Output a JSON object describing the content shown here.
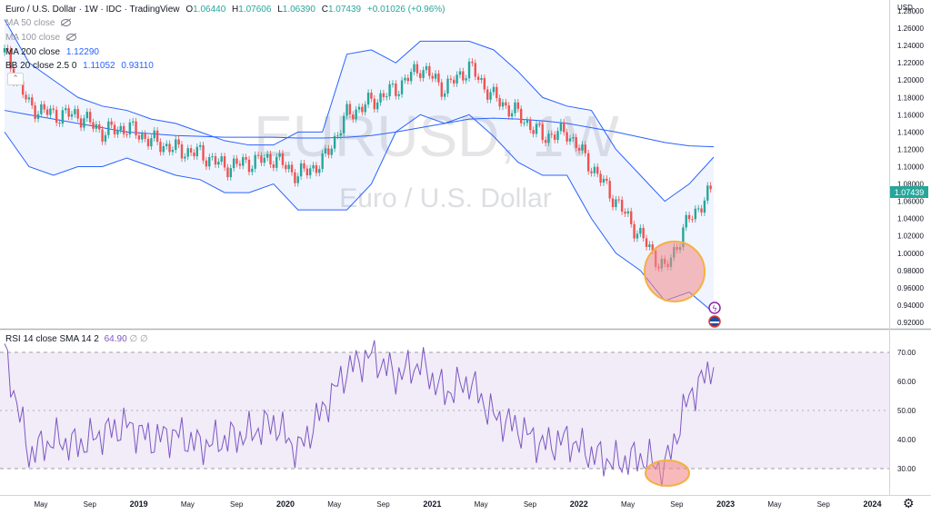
{
  "header": {
    "symbol_title": "Euro / U.S. Dollar · 1W · IDC · TradingView",
    "open_label": "O",
    "open": "1.06440",
    "high_label": "H",
    "high": "1.07606",
    "low_label": "L",
    "low": "1.06390",
    "close_label": "C",
    "close": "1.07439",
    "change": "+0.01026 (+0.96%)"
  },
  "indicators": {
    "ma50": "MA 50 close",
    "ma100": "MA 100 close",
    "ma200": "MA 200 close",
    "ma200_value": "1.12290",
    "bb": "BB 20 close 2.5 0",
    "bb_upper": "1.11052",
    "bb_lower": "0.93110",
    "collapse_icon": "chevron-up-icon",
    "rsi": "RSI 14 close SMA 14 2",
    "rsi_value": "64.90",
    "rsi_na1": "∅",
    "rsi_na2": "∅"
  },
  "watermark": {
    "symbol": "EURUSD, 1W",
    "name": "Euro / U.S. Dollar"
  },
  "colors": {
    "up": "#26a69a",
    "down": "#ef5350",
    "bb": "#2962ff",
    "ma200": "#2962ff",
    "rsi_line": "#7e57c2",
    "rsi_band": "#f1ecf8",
    "highlight": "#f28b8b",
    "highlight_border": "#f5b041",
    "last_price": "#26a69a"
  },
  "price_axis": {
    "currency": "USD",
    "ticks": [
      "1.28000",
      "1.26000",
      "1.24000",
      "1.22000",
      "1.20000",
      "1.18000",
      "1.16000",
      "1.14000",
      "1.12000",
      "1.10000",
      "1.08000",
      "1.06000",
      "1.04000",
      "1.02000",
      "1.00000",
      "0.98000",
      "0.96000",
      "0.94000",
      "0.92000"
    ],
    "last_price": "1.07439"
  },
  "rsi_axis": {
    "ticks": [
      "70.00",
      "60.00",
      "50.00",
      "40.00",
      "30.00"
    ]
  },
  "time_axis": {
    "labels": [
      "May",
      "Sep",
      "2019",
      "May",
      "Sep",
      "2020",
      "May",
      "Sep",
      "2021",
      "May",
      "Sep",
      "2022",
      "May",
      "Sep",
      "2023",
      "May",
      "Sep",
      "2024"
    ]
  },
  "settings_icon": "gear-icon",
  "chart_data": [
    {
      "type": "line",
      "title": "EURUSD, 1W",
      "ylabel": "USD",
      "ylim": [
        0.91,
        1.29
      ],
      "x": [
        "2018-03",
        "2018-05",
        "2018-07",
        "2018-09",
        "2018-11",
        "2019-01",
        "2019-03",
        "2019-05",
        "2019-07",
        "2019-09",
        "2019-11",
        "2020-01",
        "2020-03",
        "2020-05",
        "2020-07",
        "2020-09",
        "2020-11",
        "2021-01",
        "2021-03",
        "2021-05",
        "2021-07",
        "2021-09",
        "2021-11",
        "2022-01",
        "2022-03",
        "2022-05",
        "2022-07",
        "2022-09",
        "2022-11",
        "2023-01"
      ],
      "series": [
        {
          "name": "EURUSD",
          "values": [
            1.232,
            1.17,
            1.16,
            1.16,
            1.14,
            1.145,
            1.13,
            1.12,
            1.115,
            1.1,
            1.105,
            1.11,
            1.09,
            1.105,
            1.16,
            1.175,
            1.19,
            1.215,
            1.19,
            1.215,
            1.18,
            1.16,
            1.135,
            1.14,
            1.1,
            1.06,
            1.02,
            0.98,
            1.04,
            1.074
          ]
        },
        {
          "name": "MA 200 close",
          "values": [
            1.165,
            1.16,
            1.155,
            1.15,
            1.145,
            1.14,
            1.138,
            1.136,
            1.135,
            1.134,
            1.134,
            1.134,
            1.133,
            1.133,
            1.134,
            1.136,
            1.14,
            1.145,
            1.15,
            1.155,
            1.156,
            1.155,
            1.153,
            1.15,
            1.145,
            1.14,
            1.134,
            1.128,
            1.124,
            1.123
          ]
        },
        {
          "name": "BB upper",
          "values": [
            1.27,
            1.22,
            1.2,
            1.18,
            1.17,
            1.165,
            1.155,
            1.15,
            1.14,
            1.13,
            1.125,
            1.125,
            1.14,
            1.14,
            1.23,
            1.235,
            1.22,
            1.245,
            1.245,
            1.245,
            1.235,
            1.21,
            1.18,
            1.17,
            1.165,
            1.12,
            1.09,
            1.06,
            1.08,
            1.111
          ]
        },
        {
          "name": "BB lower",
          "values": [
            1.14,
            1.1,
            1.09,
            1.1,
            1.1,
            1.11,
            1.1,
            1.09,
            1.085,
            1.07,
            1.07,
            1.08,
            1.05,
            1.05,
            1.05,
            1.08,
            1.14,
            1.16,
            1.15,
            1.16,
            1.135,
            1.105,
            1.09,
            1.09,
            1.04,
            1.0,
            0.98,
            0.945,
            0.955,
            0.931
          ]
        }
      ]
    },
    {
      "type": "line",
      "title": "RSI 14 close SMA 14 2",
      "ylim": [
        25,
        75
      ],
      "x": [
        "2018-03",
        "2018-05",
        "2018-07",
        "2018-09",
        "2018-11",
        "2019-01",
        "2019-03",
        "2019-05",
        "2019-07",
        "2019-09",
        "2019-11",
        "2020-01",
        "2020-03",
        "2020-05",
        "2020-07",
        "2020-09",
        "2020-11",
        "2021-01",
        "2021-03",
        "2021-05",
        "2021-07",
        "2021-09",
        "2021-11",
        "2022-01",
        "2022-03",
        "2022-05",
        "2022-07",
        "2022-09",
        "2022-11",
        "2023-01"
      ],
      "series": [
        {
          "name": "RSI",
          "values": [
            70,
            35,
            40,
            38,
            42,
            45,
            40,
            42,
            38,
            40,
            42,
            46,
            36,
            50,
            64,
            69,
            62,
            66,
            56,
            60,
            48,
            44,
            38,
            40,
            35,
            32,
            34,
            30,
            55,
            64.9
          ]
        }
      ]
    }
  ]
}
